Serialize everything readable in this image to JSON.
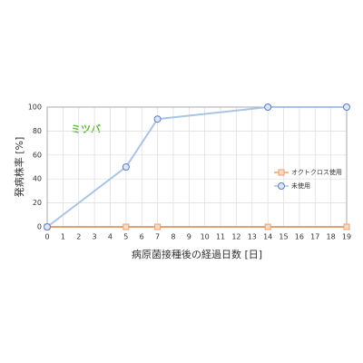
{
  "chart_data": {
    "type": "line",
    "annotation": "ミツバ",
    "xlabel": "病原菌接種後の経過日数 [日]",
    "ylabel": "発病株率 [%]",
    "x": [
      0,
      5,
      7,
      14,
      19
    ],
    "series": [
      {
        "name": "オクトクロス使用",
        "color": "#e8a070",
        "marker": "square",
        "values": [
          0,
          0,
          0,
          0,
          0
        ]
      },
      {
        "name": "未使用",
        "color": "#5b7fbf",
        "marker": "circle",
        "values": [
          0,
          50,
          90,
          100,
          100
        ]
      }
    ],
    "xlim": [
      0,
      19
    ],
    "xticks": [
      0,
      1,
      2,
      3,
      4,
      5,
      6,
      7,
      8,
      9,
      10,
      11,
      12,
      13,
      14,
      15,
      16,
      17,
      18,
      19
    ],
    "ylim": [
      0,
      100
    ],
    "yticks": [
      0,
      20,
      40,
      60,
      80,
      100
    ],
    "grid": true,
    "legend": "right"
  }
}
